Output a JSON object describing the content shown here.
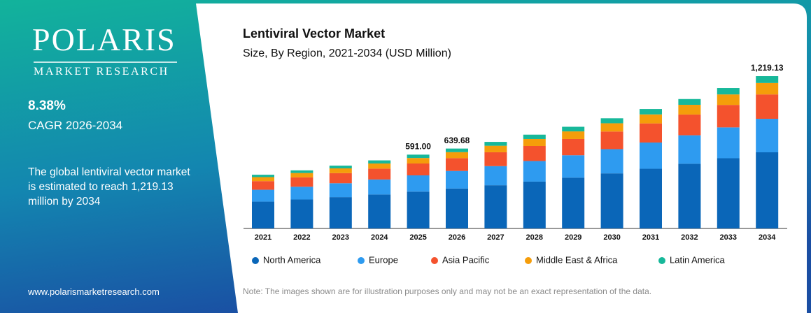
{
  "sidebar": {
    "brand": "POLARIS",
    "brand_sub": "MARKET RESEARCH",
    "stat": "8.38%",
    "stat_label": "CAGR 2026-2034",
    "description": "The global lentiviral vector market  is estimated to reach 1,219.13 million by 2034",
    "website": "www.polarismarketresearch.com"
  },
  "chart_data": {
    "type": "bar",
    "stacked": true,
    "title": "Lentiviral Vector Market",
    "subtitle": "Size, By Region, 2021-2034 (USD Million)",
    "categories": [
      "2021",
      "2022",
      "2023",
      "2024",
      "2025",
      "2026",
      "2027",
      "2028",
      "2029",
      "2030",
      "2031",
      "2032",
      "2033",
      "2034"
    ],
    "ylim": [
      0,
      1250
    ],
    "series": [
      {
        "name": "North America",
        "color": "#0a66b8",
        "values": [
          215,
          232,
          251,
          272,
          295,
          319.8,
          346,
          375,
          407,
          441,
          478,
          518,
          562,
          609.6
        ]
      },
      {
        "name": "Europe",
        "color": "#2e9bf0",
        "values": [
          95,
          102,
          111,
          120,
          130,
          140.7,
          153,
          165,
          179,
          194,
          210,
          228,
          247,
          268.2
        ]
      },
      {
        "name": "Asia Pacific",
        "color": "#f4522d",
        "values": [
          69,
          75,
          81,
          87,
          95,
          102.4,
          111,
          120,
          130,
          141,
          153,
          166,
          180,
          195.1
        ]
      },
      {
        "name": "Middle East & Africa",
        "color": "#f59d0a",
        "values": [
          32,
          35,
          38,
          41,
          44,
          48,
          52,
          56,
          61,
          66,
          72,
          78,
          84,
          91.4
        ]
      },
      {
        "name": "Latin America",
        "color": "#17b89a",
        "values": [
          19,
          21,
          22,
          25,
          27,
          28.78,
          31,
          35,
          37,
          40,
          43,
          46,
          51,
          54.83
        ]
      }
    ],
    "total_labels": [
      null,
      null,
      null,
      null,
      "591.00",
      "639.68",
      null,
      null,
      null,
      null,
      null,
      null,
      null,
      "1,219.13"
    ],
    "note": "Note: The images shown are for illustration purposes only and may not be an exact representation of the data."
  }
}
